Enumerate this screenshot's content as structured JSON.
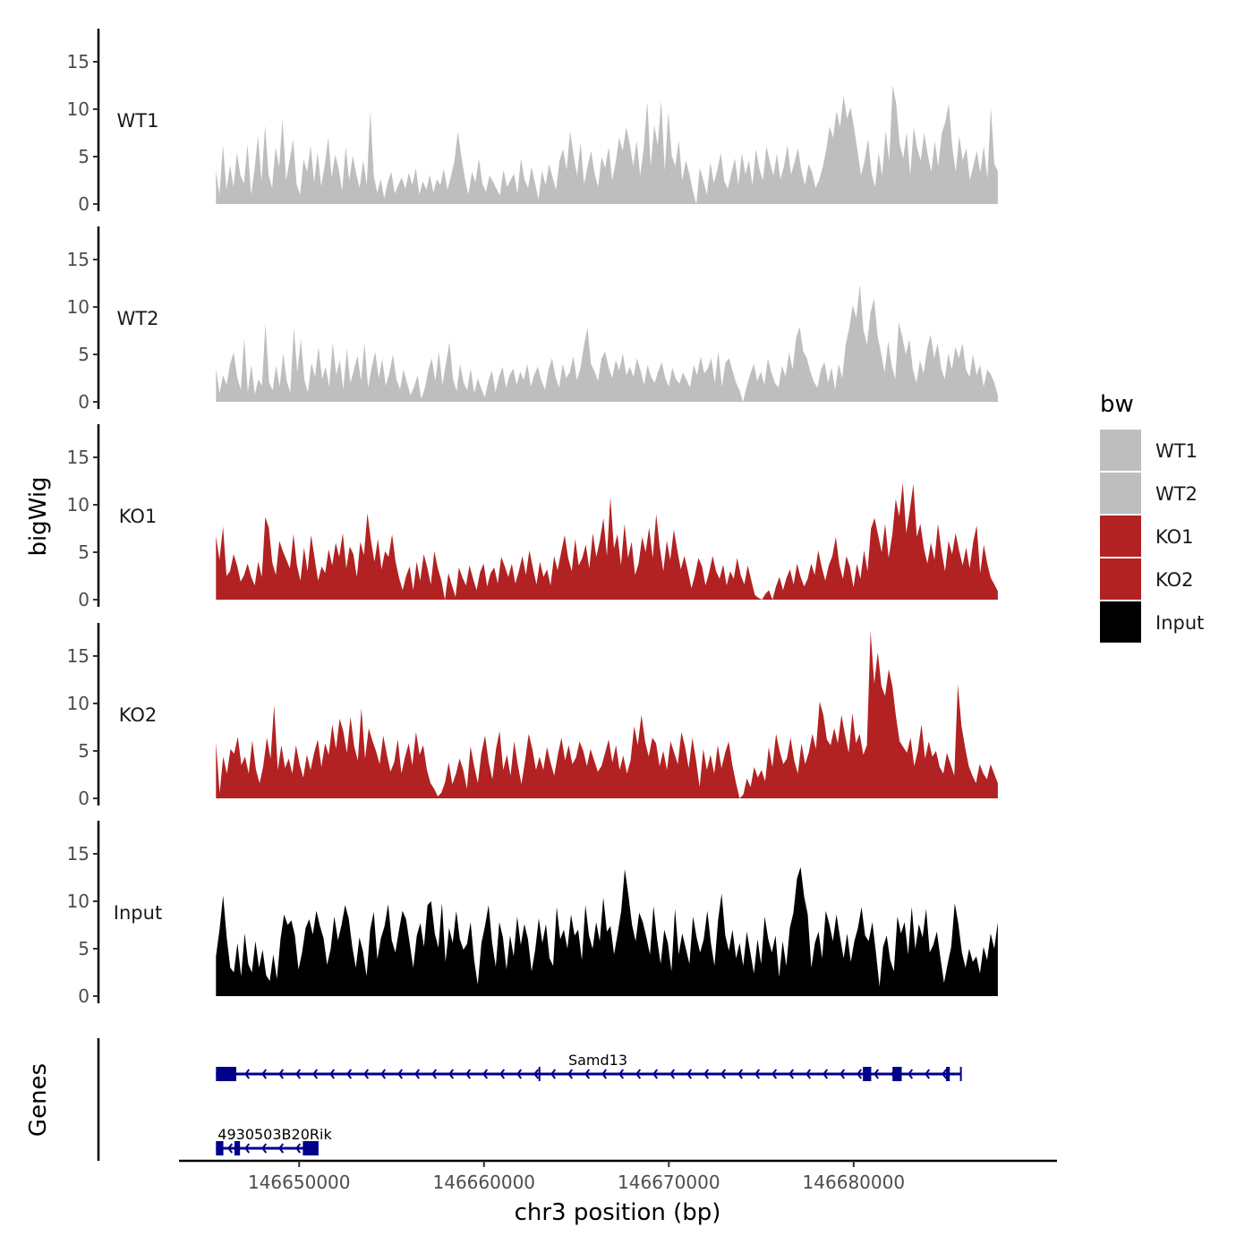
{
  "chart_data": {
    "type": "area",
    "title": "",
    "xlabel": "chr3 position (bp)",
    "ylabel": "bigWig",
    "genes_label": "Genes",
    "xlim": [
      146643500,
      146691000
    ],
    "region": [
      146645500,
      146687800
    ],
    "x_ticks": [
      146650000,
      146660000,
      146670000,
      146680000
    ],
    "x_tick_labels": [
      "146650000",
      "146660000",
      "146670000",
      "146680000"
    ],
    "ylim": [
      0,
      18
    ],
    "y_ticks": [
      0,
      5,
      10,
      15
    ],
    "y_tick_labels": [
      "0",
      "5",
      "10",
      "15"
    ],
    "legend": {
      "title": "bw",
      "position": "right",
      "entries": [
        {
          "label": "WT1",
          "color": "#bebebe"
        },
        {
          "label": "WT2",
          "color": "#bebebe"
        },
        {
          "label": "KO1",
          "color": "#b22222"
        },
        {
          "label": "KO2",
          "color": "#b22222"
        },
        {
          "label": "Input",
          "color": "#000000"
        }
      ]
    },
    "series": [
      {
        "name": "WT1",
        "color": "#bebebe",
        "values": [
          3.5,
          1.0,
          6.2,
          1.5,
          4.1,
          1.8,
          5.4,
          3.0,
          2.2,
          6.3,
          1.0,
          3.6,
          7.2,
          2.4,
          8.3,
          3.1,
          1.7,
          6.0,
          3.9,
          8.9,
          2.5,
          4.6,
          6.8,
          2.1,
          1.0,
          4.7,
          3.4,
          6.1,
          2.3,
          5.5,
          1.9,
          4.0,
          7.0,
          2.8,
          5.2,
          3.7,
          1.4,
          6.0,
          2.5,
          5.1,
          3.2,
          1.7,
          4.6,
          2.0,
          9.8,
          3.0,
          1.2,
          2.6,
          0.6,
          2.3,
          3.4,
          1.1,
          2.0,
          2.8,
          1.6,
          3.3,
          2.0,
          3.8,
          1.0,
          2.4,
          1.5,
          3.1,
          1.2,
          2.6,
          2.0,
          3.7,
          1.5,
          2.9,
          4.5,
          7.6,
          5.0,
          2.7,
          1.0,
          3.4,
          2.3,
          4.8,
          2.1,
          1.3,
          3.0,
          2.4,
          1.6,
          0.9,
          3.6,
          1.8,
          2.5,
          3.2,
          1.1,
          4.8,
          2.6,
          1.7,
          3.9,
          2.2,
          0.5,
          3.5,
          2.0,
          4.2,
          2.8,
          1.5,
          4.6,
          5.8,
          3.6,
          7.7,
          5.1,
          3.0,
          6.5,
          2.1,
          4.0,
          5.6,
          3.2,
          1.8,
          5.0,
          3.8,
          6.0,
          2.5,
          4.4,
          7.0,
          5.6,
          8.1,
          6.4,
          4.0,
          6.7,
          3.0,
          5.9,
          10.8,
          4.0,
          8.3,
          6.2,
          10.9,
          3.5,
          9.7,
          5.1,
          4.0,
          6.7,
          2.5,
          4.6,
          3.2,
          1.4,
          0.0,
          3.8,
          2.5,
          1.0,
          4.4,
          2.2,
          3.6,
          5.4,
          2.4,
          1.6,
          3.3,
          4.8,
          2.0,
          5.4,
          3.1,
          4.6,
          2.0,
          5.8,
          3.7,
          2.5,
          6.1,
          4.4,
          3.0,
          5.3,
          2.6,
          4.0,
          6.2,
          3.1,
          4.4,
          5.9,
          3.5,
          2.0,
          4.2,
          3.4,
          1.7,
          2.5,
          3.8,
          5.6,
          8.2,
          7.0,
          9.8,
          8.1,
          11.4,
          9.0,
          10.2,
          8.0,
          5.6,
          3.0,
          4.6,
          6.9,
          3.2,
          1.8,
          5.4,
          3.0,
          7.7,
          4.5,
          12.5,
          10.6,
          6.4,
          4.8,
          7.6,
          3.0,
          8.1,
          5.9,
          4.6,
          7.5,
          5.2,
          3.4,
          6.6,
          4.0,
          7.4,
          8.6,
          10.6,
          6.0,
          3.4,
          7.2,
          4.6,
          5.9,
          2.5,
          4.0,
          5.6,
          3.3,
          6.1,
          2.7,
          10.2,
          4.2,
          3.5
        ]
      },
      {
        "name": "WT2",
        "color": "#bebebe",
        "values": [
          3.5,
          0.9,
          2.8,
          1.8,
          4.0,
          5.2,
          2.6,
          1.3,
          6.7,
          1.0,
          3.9,
          0.8,
          2.4,
          1.7,
          8.3,
          2.1,
          1.2,
          3.8,
          1.6,
          5.1,
          2.2,
          1.0,
          7.8,
          3.1,
          6.6,
          2.3,
          1.0,
          4.1,
          2.6,
          5.8,
          2.4,
          3.7,
          1.6,
          6.2,
          2.8,
          4.4,
          1.3,
          5.6,
          2.0,
          3.4,
          4.9,
          2.2,
          6.2,
          1.5,
          3.6,
          5.3,
          2.5,
          4.5,
          1.7,
          3.0,
          5.0,
          2.4,
          1.3,
          3.4,
          2.0,
          0.7,
          1.6,
          2.8,
          0.3,
          1.4,
          3.3,
          4.6,
          2.2,
          5.3,
          1.8,
          4.0,
          6.3,
          2.4,
          1.1,
          4.0,
          2.0,
          1.2,
          3.5,
          0.9,
          2.5,
          1.4,
          0.5,
          2.2,
          3.3,
          1.0,
          2.6,
          3.7,
          1.5,
          2.8,
          3.5,
          1.8,
          3.2,
          2.3,
          4.0,
          1.6,
          2.9,
          3.7,
          2.2,
          1.3,
          3.4,
          4.6,
          2.6,
          1.5,
          4.0,
          2.5,
          3.1,
          4.8,
          2.3,
          3.5,
          5.9,
          7.8,
          4.0,
          3.2,
          2.2,
          4.6,
          5.3,
          3.6,
          2.5,
          4.4,
          3.3,
          5.1,
          2.8,
          3.7,
          2.6,
          4.6,
          3.3,
          1.8,
          3.9,
          2.6,
          2.0,
          3.2,
          4.2,
          2.5,
          1.6,
          3.6,
          2.4,
          1.9,
          3.1,
          2.3,
          1.5,
          3.9,
          2.8,
          4.8,
          3.0,
          3.5,
          4.6,
          2.0,
          5.4,
          1.6,
          4.1,
          4.6,
          3.3,
          2.0,
          1.2,
          0.0,
          1.6,
          2.9,
          4.0,
          2.2,
          3.2,
          1.8,
          4.6,
          3.1,
          2.0,
          1.5,
          3.8,
          2.7,
          5.2,
          3.4,
          6.8,
          7.9,
          5.3,
          4.6,
          3.2,
          2.1,
          1.5,
          3.4,
          4.2,
          2.0,
          3.6,
          1.3,
          4.0,
          2.5,
          6.0,
          7.8,
          10.2,
          8.8,
          12.4,
          7.6,
          6.0,
          9.4,
          10.9,
          7.0,
          5.1,
          3.1,
          6.4,
          3.8,
          2.4,
          8.4,
          6.8,
          5.0,
          6.6,
          3.4,
          2.0,
          4.4,
          3.0,
          5.6,
          7.1,
          4.6,
          6.2,
          3.5,
          2.4,
          5.1,
          3.4,
          5.8,
          4.6,
          6.2,
          3.4,
          2.6,
          5.0,
          2.8,
          3.9,
          1.6,
          3.4,
          2.9,
          2.0,
          0.7
        ]
      },
      {
        "name": "KO1",
        "color": "#b22222",
        "values": [
          6.7,
          4.2,
          7.7,
          2.5,
          3.0,
          4.8,
          3.6,
          1.9,
          2.6,
          3.8,
          2.4,
          1.5,
          4.0,
          2.4,
          8.7,
          7.6,
          3.9,
          2.6,
          6.2,
          5.1,
          4.2,
          3.3,
          6.9,
          3.6,
          2.0,
          5.5,
          3.0,
          6.8,
          4.4,
          2.0,
          3.5,
          2.8,
          5.3,
          3.6,
          6.0,
          4.5,
          7.0,
          3.3,
          5.6,
          4.8,
          2.4,
          6.1,
          4.7,
          9.1,
          6.2,
          4.0,
          6.4,
          3.2,
          5.1,
          4.5,
          6.9,
          4.0,
          2.3,
          1.0,
          2.5,
          3.5,
          1.0,
          4.0,
          2.0,
          4.8,
          3.4,
          1.6,
          5.1,
          3.3,
          2.0,
          0.0,
          2.8,
          1.5,
          0.3,
          3.4,
          2.3,
          1.5,
          3.6,
          2.2,
          1.0,
          2.9,
          3.8,
          1.4,
          2.8,
          3.4,
          1.7,
          4.5,
          3.5,
          2.4,
          3.8,
          1.7,
          3.0,
          4.6,
          2.6,
          5.2,
          3.3,
          1.6,
          4.0,
          2.4,
          3.2,
          1.5,
          4.6,
          3.1,
          5.0,
          6.8,
          4.4,
          3.0,
          6.4,
          3.6,
          4.4,
          5.8,
          3.3,
          7.0,
          4.5,
          6.2,
          8.6,
          4.6,
          10.8,
          5.4,
          6.9,
          3.6,
          8.0,
          4.4,
          6.1,
          2.6,
          3.8,
          6.6,
          5.0,
          7.6,
          4.4,
          9.0,
          5.6,
          3.0,
          6.2,
          4.2,
          7.4,
          5.2,
          3.2,
          4.6,
          3.0,
          1.2,
          2.6,
          4.4,
          3.5,
          1.5,
          2.8,
          4.6,
          3.0,
          2.2,
          3.7,
          1.5,
          3.0,
          2.2,
          4.4,
          2.6,
          1.6,
          3.6,
          2.0,
          0.5,
          0.2,
          0.0,
          0.6,
          1.0,
          0.0,
          1.4,
          2.4,
          1.0,
          2.3,
          3.2,
          1.6,
          3.8,
          2.4,
          1.4,
          2.2,
          3.8,
          2.6,
          5.2,
          3.4,
          2.0,
          3.6,
          4.6,
          6.6,
          3.7,
          2.2,
          4.6,
          3.5,
          1.3,
          3.8,
          2.2,
          5.2,
          3.0,
          7.5,
          8.6,
          6.8,
          5.0,
          8.0,
          4.4,
          6.8,
          10.6,
          8.8,
          12.3,
          7.0,
          9.4,
          12.2,
          6.6,
          8.0,
          5.4,
          3.8,
          6.0,
          4.2,
          8.0,
          5.2,
          3.0,
          6.2,
          4.8,
          7.0,
          5.2,
          3.6,
          5.5,
          3.3,
          6.1,
          7.8,
          2.8,
          5.8,
          3.8,
          2.3,
          1.6,
          0.9
        ]
      },
      {
        "name": "KO2",
        "color": "#b22222",
        "values": [
          5.9,
          0.6,
          4.4,
          2.6,
          5.2,
          4.7,
          6.5,
          3.5,
          4.4,
          2.6,
          6.1,
          3.0,
          1.6,
          3.4,
          6.4,
          4.2,
          9.8,
          3.0,
          5.6,
          3.2,
          4.2,
          2.6,
          5.6,
          3.6,
          2.2,
          4.6,
          3.0,
          4.8,
          6.2,
          3.3,
          5.8,
          4.6,
          7.8,
          5.2,
          8.4,
          7.1,
          4.8,
          8.6,
          5.5,
          4.0,
          9.5,
          4.2,
          7.4,
          6.1,
          5.0,
          3.6,
          6.6,
          4.6,
          2.8,
          3.8,
          6.2,
          2.6,
          4.4,
          5.8,
          3.5,
          7.0,
          4.6,
          5.6,
          3.0,
          1.6,
          1.0,
          0.2,
          0.6,
          1.7,
          3.8,
          1.5,
          2.6,
          4.2,
          3.0,
          1.0,
          5.5,
          3.4,
          1.6,
          4.8,
          6.6,
          3.8,
          2.0,
          5.2,
          7.1,
          3.0,
          4.6,
          2.4,
          6.0,
          3.5,
          1.5,
          4.0,
          6.8,
          5.2,
          3.0,
          4.4,
          3.0,
          5.4,
          3.8,
          2.4,
          4.6,
          6.4,
          4.0,
          5.6,
          3.6,
          4.3,
          6.0,
          5.0,
          3.4,
          5.2,
          4.0,
          2.8,
          3.4,
          4.8,
          6.2,
          3.8,
          5.6,
          3.0,
          4.5,
          2.6,
          4.0,
          7.6,
          5.6,
          8.8,
          6.0,
          4.4,
          6.4,
          5.8,
          3.4,
          5.0,
          3.0,
          6.0,
          4.8,
          3.6,
          7.0,
          5.4,
          3.2,
          6.4,
          4.0,
          1.2,
          5.2,
          3.0,
          4.6,
          2.6,
          5.6,
          3.2,
          4.8,
          6.0,
          3.5,
          1.6,
          0.0,
          0.4,
          2.1,
          1.2,
          3.3,
          2.2,
          3.0,
          1.8,
          5.4,
          3.3,
          6.8,
          5.0,
          3.6,
          4.2,
          6.4,
          4.0,
          2.6,
          5.8,
          3.6,
          4.8,
          6.8,
          5.2,
          10.2,
          8.8,
          6.2,
          5.6,
          7.4,
          5.8,
          8.8,
          6.6,
          4.8,
          9.0,
          5.8,
          6.8,
          4.6,
          5.6,
          17.6,
          12.1,
          15.4,
          11.8,
          10.8,
          13.6,
          11.8,
          8.6,
          6.0,
          5.4,
          4.8,
          6.4,
          3.4,
          5.0,
          7.8,
          4.2,
          6.0,
          4.4,
          5.0,
          3.3,
          2.6,
          4.8,
          3.6,
          2.4,
          12.0,
          7.6,
          5.4,
          3.4,
          2.4,
          1.6,
          3.6,
          2.6,
          2.0,
          3.6,
          2.6,
          1.6
        ]
      },
      {
        "name": "Input",
        "color": "#000000",
        "values": [
          4.2,
          7.0,
          10.6,
          6.2,
          3.0,
          2.5,
          5.6,
          2.1,
          6.6,
          3.4,
          2.5,
          5.8,
          3.0,
          4.9,
          2.2,
          1.6,
          4.4,
          1.8,
          6.0,
          8.6,
          7.5,
          8.0,
          6.4,
          2.8,
          4.6,
          7.2,
          8.1,
          6.5,
          9.0,
          7.4,
          6.1,
          3.3,
          5.0,
          8.4,
          5.9,
          7.5,
          9.6,
          8.2,
          5.2,
          3.0,
          6.2,
          4.7,
          2.1,
          7.0,
          8.9,
          3.9,
          6.1,
          7.4,
          9.7,
          5.9,
          4.6,
          6.9,
          9.0,
          8.1,
          5.6,
          3.0,
          6.4,
          7.7,
          5.2,
          9.6,
          10.0,
          6.6,
          5.1,
          9.8,
          3.6,
          7.2,
          5.6,
          9.0,
          6.0,
          4.9,
          5.5,
          7.8,
          3.8,
          1.2,
          5.6,
          7.4,
          9.6,
          5.6,
          3.1,
          7.8,
          6.2,
          2.8,
          6.4,
          4.2,
          8.4,
          5.4,
          7.6,
          6.0,
          2.6,
          4.9,
          8.2,
          5.6,
          7.6,
          4.0,
          3.2,
          9.4,
          6.0,
          7.0,
          5.0,
          8.6,
          6.4,
          7.0,
          3.8,
          9.6,
          6.4,
          5.0,
          7.8,
          5.8,
          10.4,
          6.8,
          7.4,
          4.4,
          6.6,
          9.0,
          13.4,
          10.6,
          7.5,
          5.8,
          8.8,
          7.8,
          6.2,
          4.4,
          9.5,
          6.0,
          3.4,
          7.0,
          5.6,
          2.6,
          9.2,
          4.4,
          6.6,
          5.0,
          3.4,
          8.4,
          6.2,
          4.6,
          6.0,
          9.0,
          5.6,
          3.2,
          8.0,
          10.8,
          6.4,
          4.8,
          7.0,
          4.0,
          5.6,
          3.2,
          6.8,
          4.6,
          2.4,
          6.0,
          3.4,
          8.4,
          6.0,
          4.6,
          6.4,
          2.0,
          5.8,
          3.2,
          7.2,
          8.8,
          12.4,
          13.6,
          10.5,
          8.6,
          3.0,
          5.6,
          6.8,
          4.0,
          9.0,
          7.6,
          5.8,
          8.6,
          6.2,
          4.0,
          6.6,
          3.6,
          5.8,
          7.2,
          9.4,
          6.4,
          5.8,
          7.8,
          4.6,
          1.0,
          5.2,
          6.4,
          3.8,
          2.6,
          8.4,
          6.6,
          7.8,
          4.4,
          9.4,
          5.0,
          7.6,
          6.2,
          9.2,
          4.6,
          5.4,
          6.8,
          4.0,
          1.4,
          3.4,
          5.2,
          9.8,
          7.6,
          4.6,
          3.0,
          5.0,
          3.6,
          4.2,
          2.4,
          5.2,
          3.8,
          6.6,
          5.0,
          7.8
        ]
      }
    ],
    "gene_track": [
      {
        "name": "Samd13",
        "strand": "-",
        "start": 146645500,
        "end": 146685800,
        "exons": [
          [
            146645500,
            146646600
          ],
          [
            146680500,
            146680950
          ],
          [
            146682100,
            146682600
          ],
          [
            146685000,
            146685200
          ]
        ],
        "introns_marks": [
          146663000
        ]
      },
      {
        "name": "4930503B20Rik",
        "strand": "-",
        "start": 146645500,
        "end": 146651000,
        "exons": [
          [
            146645500,
            146645900
          ],
          [
            146646500,
            146646800
          ],
          [
            146650200,
            146651000
          ]
        ],
        "introns_marks": []
      }
    ]
  }
}
